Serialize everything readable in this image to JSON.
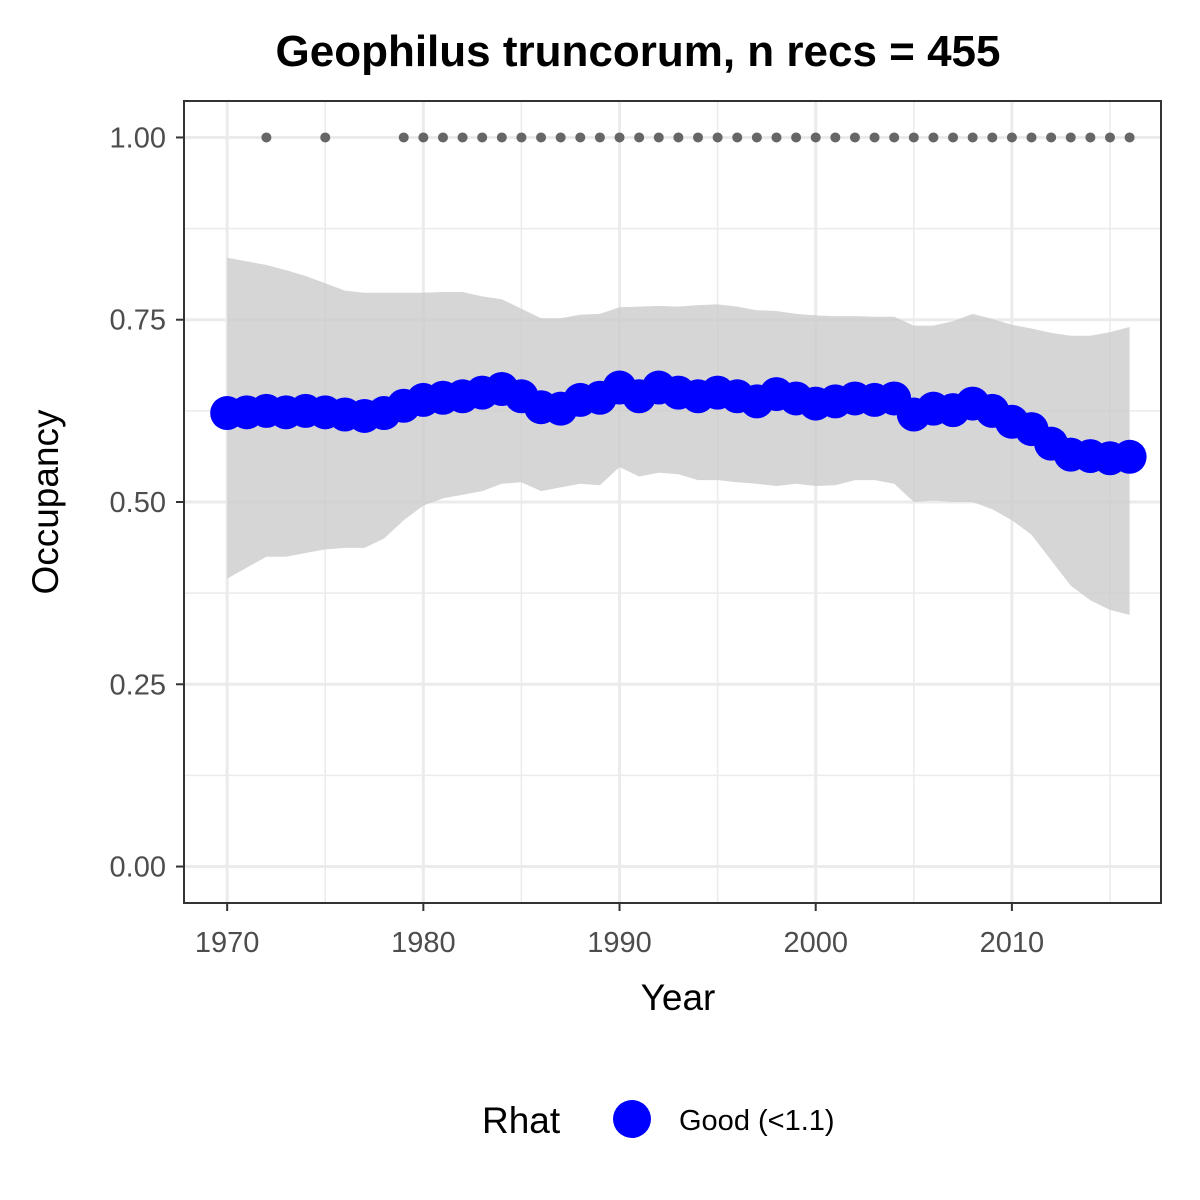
{
  "chart_data": {
    "type": "line",
    "title": "Geophilus truncorum, n recs = 455",
    "xlabel": "Year",
    "ylabel": "Occupancy",
    "xlim": [
      1967.8,
      2017.6
    ],
    "ylim": [
      -0.05,
      1.05
    ],
    "x_ticks": [
      1970,
      1980,
      1990,
      2000,
      2010
    ],
    "y_ticks": [
      0.0,
      0.25,
      0.5,
      0.75,
      1.0
    ],
    "y_tick_labels": [
      "0.00",
      "0.25",
      "0.50",
      "0.75",
      "1.00"
    ],
    "grid": true,
    "legend_position": "bottom",
    "legend": {
      "title": "Rhat",
      "entries": [
        {
          "label": "Good (<1.1)",
          "color": "#0000ff"
        }
      ]
    },
    "colors": {
      "series": "#0000ff",
      "ribbon": "#cccccc",
      "records": "#666666",
      "panel_border": "#333333",
      "grid": "#ebebeb"
    },
    "series": [
      {
        "years": [
          1970,
          1971,
          1972,
          1973,
          1974,
          1975,
          1976,
          1977,
          1978,
          1979,
          1980,
          1981,
          1982,
          1983,
          1984,
          1985,
          1986,
          1987,
          1988,
          1989,
          1990,
          1991,
          1992,
          1993,
          1994,
          1995,
          1996,
          1997,
          1998,
          1999,
          2000,
          2001,
          2002,
          2003,
          2004,
          2005,
          2006,
          2007,
          2008,
          2009,
          2010,
          2011,
          2012,
          2013,
          2014,
          2015,
          2016
        ],
        "mean": [
          0.622,
          0.623,
          0.625,
          0.623,
          0.625,
          0.623,
          0.62,
          0.618,
          0.622,
          0.632,
          0.64,
          0.643,
          0.645,
          0.65,
          0.655,
          0.645,
          0.63,
          0.628,
          0.64,
          0.643,
          0.657,
          0.645,
          0.657,
          0.65,
          0.645,
          0.65,
          0.645,
          0.638,
          0.648,
          0.642,
          0.635,
          0.638,
          0.642,
          0.64,
          0.642,
          0.62,
          0.628,
          0.626,
          0.635,
          0.625,
          0.61,
          0.6,
          0.58,
          0.565,
          0.563,
          0.56,
          0.562
        ],
        "upper": [
          0.835,
          0.83,
          0.825,
          0.818,
          0.81,
          0.8,
          0.79,
          0.787,
          0.787,
          0.787,
          0.787,
          0.788,
          0.788,
          0.782,
          0.778,
          0.765,
          0.752,
          0.752,
          0.757,
          0.758,
          0.767,
          0.768,
          0.769,
          0.768,
          0.77,
          0.771,
          0.768,
          0.763,
          0.762,
          0.758,
          0.756,
          0.755,
          0.755,
          0.754,
          0.754,
          0.742,
          0.742,
          0.748,
          0.758,
          0.751,
          0.743,
          0.738,
          0.732,
          0.728,
          0.728,
          0.733,
          0.74
        ],
        "lower": [
          0.395,
          0.41,
          0.425,
          0.425,
          0.43,
          0.435,
          0.437,
          0.437,
          0.45,
          0.475,
          0.495,
          0.505,
          0.51,
          0.515,
          0.525,
          0.527,
          0.515,
          0.52,
          0.525,
          0.523,
          0.548,
          0.535,
          0.54,
          0.538,
          0.53,
          0.53,
          0.527,
          0.525,
          0.522,
          0.525,
          0.522,
          0.523,
          0.53,
          0.53,
          0.525,
          0.5,
          0.502,
          0.5,
          0.5,
          0.49,
          0.475,
          0.455,
          0.42,
          0.385,
          0.365,
          0.352,
          0.345
        ]
      }
    ],
    "records": {
      "years": [
        1972,
        1975,
        1979,
        1980,
        1981,
        1982,
        1983,
        1984,
        1985,
        1986,
        1987,
        1988,
        1989,
        1990,
        1991,
        1992,
        1993,
        1994,
        1995,
        1996,
        1997,
        1998,
        1999,
        2000,
        2001,
        2002,
        2003,
        2004,
        2005,
        2006,
        2007,
        2008,
        2009,
        2010,
        2011,
        2012,
        2013,
        2014,
        2015,
        2016
      ],
      "value": 1.0
    }
  }
}
